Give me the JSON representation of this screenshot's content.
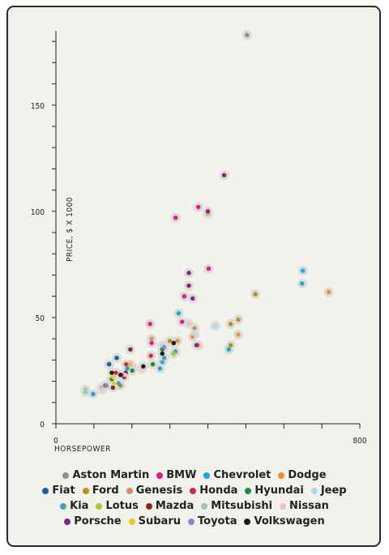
{
  "chart_data": {
    "type": "scatter",
    "title": "",
    "xlabel": "HORSEPOWER",
    "ylabel": "PRICE, $ X 1000",
    "xlim": [
      0,
      800
    ],
    "ylim": [
      0,
      185
    ],
    "x_ticks": [
      0,
      800
    ],
    "y_ticks": [
      0,
      50,
      100,
      150
    ],
    "legend_position": "bottom",
    "series": [
      {
        "name": "Aston Martin",
        "color": "#8a9199",
        "points": [
          [
            503,
            183
          ]
        ]
      },
      {
        "name": "BMW",
        "color": "#e6198c",
        "points": [
          [
            248,
            47
          ],
          [
            338,
            60
          ],
          [
            252,
            38
          ],
          [
            315,
            97
          ],
          [
            402,
            73
          ],
          [
            375,
            102
          ],
          [
            332,
            48
          ]
        ]
      },
      {
        "name": "Chevrolet",
        "color": "#1aa6e0",
        "points": [
          [
            98,
            14
          ],
          [
            188,
            26
          ],
          [
            274,
            26
          ],
          [
            455,
            35
          ],
          [
            323,
            52
          ],
          [
            648,
            66
          ],
          [
            650,
            72
          ]
        ]
      },
      {
        "name": "Dodge",
        "color": "#f0912a",
        "points": [
          [
            360,
            41
          ],
          [
            480,
            42
          ],
          [
            375,
            37
          ],
          [
            718,
            62
          ],
          [
            320,
            39
          ]
        ]
      },
      {
        "name": "Fiat",
        "color": "#1a5ca8",
        "points": [
          [
            160,
            31
          ],
          [
            140,
            28
          ]
        ]
      },
      {
        "name": "Ford",
        "color": "#b5920f",
        "points": [
          [
            170,
            18
          ],
          [
            310,
            33
          ],
          [
            460,
            47
          ],
          [
            480,
            49
          ],
          [
            525,
            61
          ],
          [
            460,
            37
          ],
          [
            300,
            39
          ]
        ]
      },
      {
        "name": "Genesis",
        "color": "#d98a64",
        "points": [
          [
            252,
            40
          ],
          [
            310,
            38
          ],
          [
            365,
            45
          ]
        ]
      },
      {
        "name": "Honda",
        "color": "#d32b38",
        "points": [
          [
            130,
            18
          ],
          [
            158,
            24
          ],
          [
            185,
            28
          ],
          [
            250,
            32
          ]
        ]
      },
      {
        "name": "Hyundai",
        "color": "#1e8a3c",
        "points": [
          [
            147,
            21
          ],
          [
            201,
            25
          ],
          [
            255,
            28
          ],
          [
            280,
            35
          ]
        ]
      },
      {
        "name": "Jeep",
        "color": "#a9d9f0",
        "points": [
          [
            280,
            37
          ],
          [
            365,
            42
          ],
          [
            420,
            46
          ]
        ]
      },
      {
        "name": "Kia",
        "color": "#3aa6b9",
        "points": [
          [
            165,
            19
          ],
          [
            280,
            29
          ],
          [
            285,
            31
          ],
          [
            315,
            34
          ]
        ]
      },
      {
        "name": "Lotus",
        "color": "#a6c93a",
        "points": [
          [
            400,
            99
          ],
          [
            310,
            33
          ]
        ]
      },
      {
        "name": "Mazda",
        "color": "#8c2a1f",
        "points": [
          [
            150,
            17
          ],
          [
            180,
            22
          ],
          [
            184,
            24
          ],
          [
            196,
            35
          ],
          [
            195,
            28
          ]
        ]
      },
      {
        "name": "Mitsubishi",
        "color": "#9fc9a6",
        "points": [
          [
            78,
            16
          ],
          [
            78,
            15
          ],
          [
            120,
            17
          ]
        ]
      },
      {
        "name": "Nissan",
        "color": "#efbfcf",
        "points": [
          [
            122,
            16
          ],
          [
            182,
            23
          ],
          [
            200,
            27
          ],
          [
            226,
            26
          ],
          [
            350,
            47
          ]
        ]
      },
      {
        "name": "Porsche",
        "color": "#8e1d8e",
        "points": [
          [
            360,
            59
          ],
          [
            350,
            71
          ],
          [
            443,
            117
          ],
          [
            350,
            65
          ],
          [
            400,
            100
          ],
          [
            370,
            37
          ]
        ]
      },
      {
        "name": "Subaru",
        "color": "#f0c81a",
        "points": [
          [
            150,
            22
          ],
          [
            152,
            19
          ],
          [
            195,
            28
          ]
        ]
      },
      {
        "name": "Toyota",
        "color": "#8a86d0",
        "points": [
          [
            133,
            18
          ],
          [
            173,
            23
          ],
          [
            280,
            33
          ],
          [
            285,
            36
          ]
        ]
      },
      {
        "name": "Volkswagen",
        "color": "#1c1c1c",
        "points": [
          [
            147,
            24
          ],
          [
            170,
            23
          ],
          [
            230,
            27
          ],
          [
            280,
            33
          ],
          [
            310,
            38
          ]
        ]
      }
    ]
  }
}
